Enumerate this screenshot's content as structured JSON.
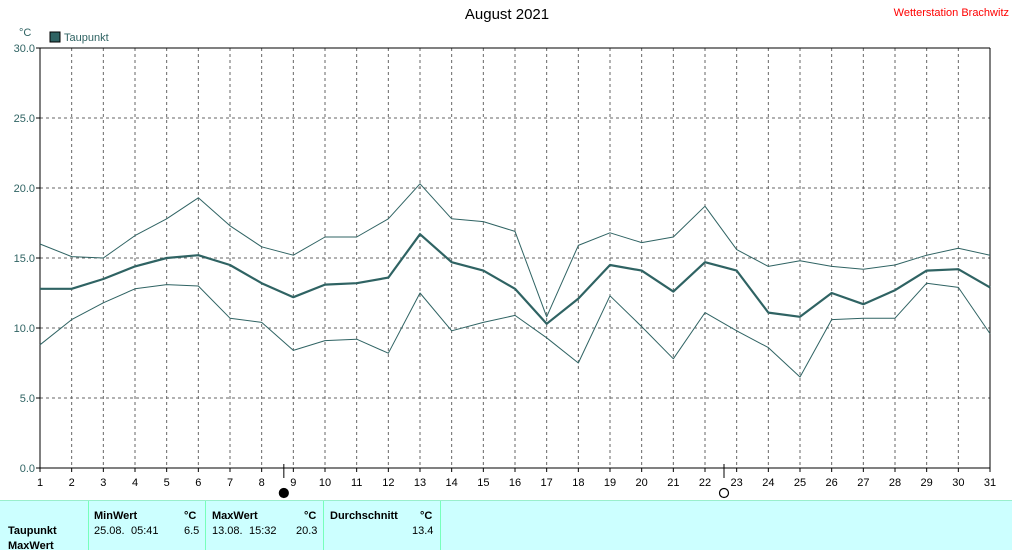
{
  "chart_data": {
    "type": "line",
    "title": "August 2021",
    "station": "Wetterstation Brachwitz",
    "unit": "°C",
    "legend": [
      {
        "name": "Taupunkt",
        "color": "#2f6363"
      }
    ],
    "legend_position": "top-left",
    "grid": true,
    "ylim": [
      0,
      30
    ],
    "y_ticks": [
      "0.0",
      "5.0",
      "10.0",
      "15.0",
      "20.0",
      "25.0",
      "30.0"
    ],
    "x": [
      1,
      2,
      3,
      4,
      5,
      6,
      7,
      8,
      9,
      10,
      11,
      12,
      13,
      14,
      15,
      16,
      17,
      18,
      19,
      20,
      21,
      22,
      23,
      24,
      25,
      26,
      27,
      28,
      29,
      30,
      31
    ],
    "series": [
      {
        "name": "Taupunkt",
        "role": "mean",
        "color": "#2f6363",
        "values": [
          12.8,
          12.8,
          13.5,
          14.4,
          15.0,
          15.2,
          14.5,
          13.2,
          12.2,
          13.1,
          13.2,
          13.6,
          16.7,
          14.7,
          14.1,
          12.8,
          10.3,
          12.1,
          14.5,
          14.1,
          12.6,
          14.7,
          14.1,
          11.1,
          10.8,
          12.5,
          11.7,
          12.7,
          14.1,
          14.2,
          12.9
        ]
      },
      {
        "role": "max",
        "color": "#2f6363",
        "values": [
          16.0,
          15.1,
          15.0,
          16.6,
          17.8,
          19.3,
          17.3,
          15.8,
          15.2,
          16.5,
          16.5,
          17.8,
          20.3,
          17.8,
          17.6,
          16.9,
          10.8,
          15.9,
          16.8,
          16.1,
          16.5,
          18.7,
          15.6,
          14.4,
          14.8,
          14.4,
          14.2,
          14.5,
          15.2,
          15.7,
          15.2
        ]
      },
      {
        "role": "min",
        "color": "#2f6363",
        "values": [
          8.8,
          10.6,
          11.8,
          12.8,
          13.1,
          13.0,
          10.7,
          10.4,
          8.4,
          9.1,
          9.2,
          8.2,
          12.5,
          9.8,
          10.4,
          10.9,
          9.3,
          7.5,
          12.3,
          10.1,
          7.8,
          11.1,
          9.8,
          8.6,
          6.5,
          10.6,
          10.7,
          10.7,
          13.2,
          12.9,
          9.6
        ]
      }
    ],
    "markers": [
      {
        "label": "full-moon",
        "x": 8.7
      },
      {
        "label": "new-moon",
        "x": 22.6
      }
    ]
  },
  "stats": {
    "row_label": "Taupunkt",
    "row_label_2": "MaxWert",
    "min": {
      "header": "MinWert",
      "unit": "°C",
      "date": "25.08.",
      "time": "05:41",
      "value": "6.5"
    },
    "max": {
      "header": "MaxWert",
      "unit": "°C",
      "date": "13.08.",
      "time": "15:32",
      "value": "20.3"
    },
    "avg": {
      "header": "Durchschnitt",
      "unit": "°C",
      "value": "13.4"
    }
  }
}
